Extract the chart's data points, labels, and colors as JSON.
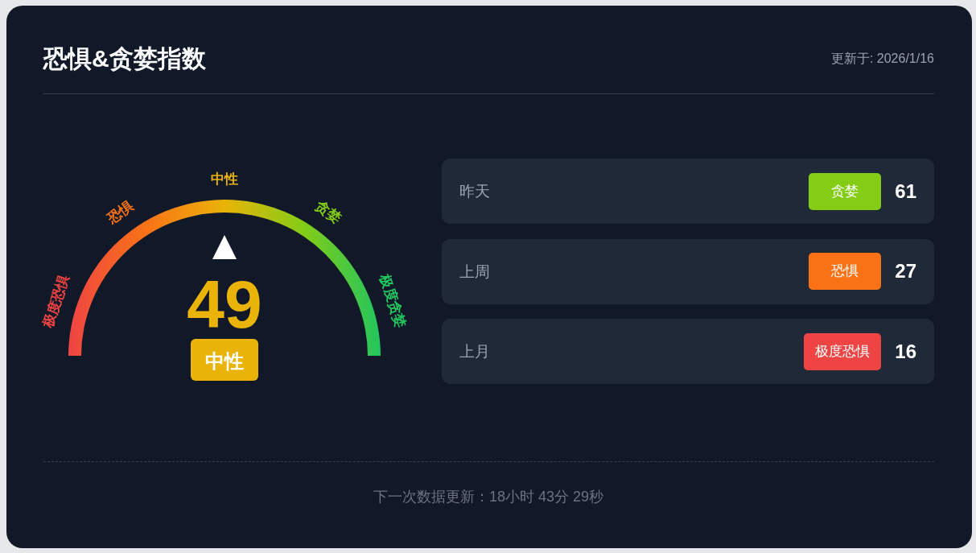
{
  "chart_data": [
    {
      "type": "other",
      "title": "恐惧&贪婪指数",
      "categories": [
        "极度恐惧",
        "恐惧",
        "中性",
        "贪婪",
        "极度贪婪"
      ],
      "colors": [
        "#ef4444",
        "#f97316",
        "#eab308",
        "#84cc16",
        "#22c55e"
      ],
      "needle": "中性",
      "annotations": [
        "更新于: 2026/1/16",
        "49",
        "下一次数据更新：18小时 43分 29秒"
      ]
    },
    {
      "type": "other",
      "categories": [
        "昨天",
        "上周",
        "上月"
      ],
      "values": [
        61,
        27,
        16
      ],
      "data_labels": true,
      "annotations": [
        "贪婪",
        "恐惧",
        "极度恐惧"
      ]
    }
  ]
}
